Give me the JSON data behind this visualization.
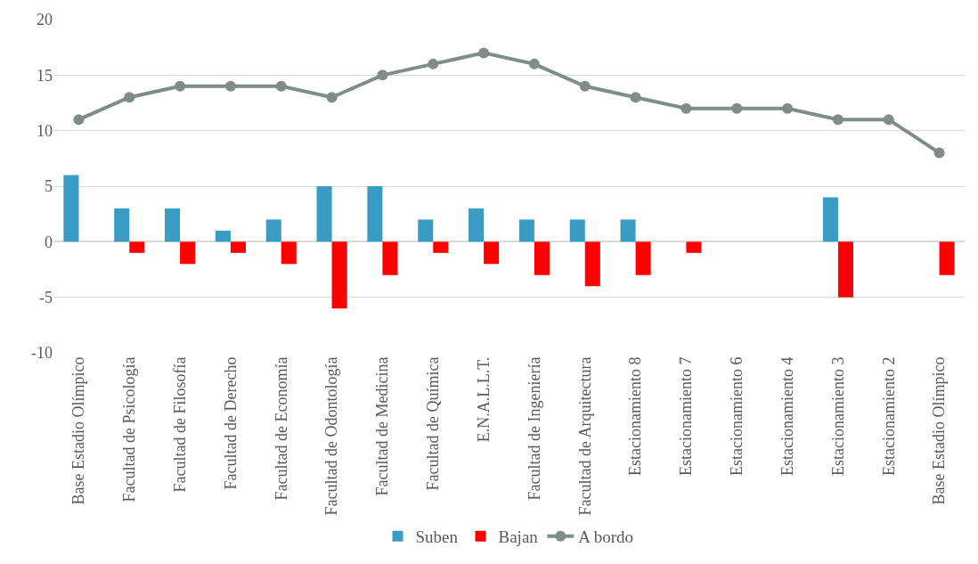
{
  "chart_data": {
    "type": "bar",
    "categories": [
      "Base Estadio Olímpico",
      "Facultad de Psicología",
      "Facultad de Filosofía",
      "Facultad de Derecho",
      "Facultad de Economía",
      "Facultad de Odontología",
      "Facultad de Medicina",
      "Facultad de Química",
      "E.N.A.L.L.T.",
      "Facultad de Ingeniería",
      "Facultad de Arquitectura",
      "Estacionamiento 8",
      "Estacionamiento 7",
      "Estacionamiento 6",
      "Estacionamiento 4",
      "Estacionamiento 3",
      "Estacionamiento 2",
      "Base Estadio Olímpico"
    ],
    "series": [
      {
        "name": "Suben",
        "color": "#3a9cc2",
        "values": [
          6,
          3,
          3,
          1,
          2,
          5,
          5,
          2,
          3,
          2,
          2,
          2,
          0,
          0,
          0,
          4,
          0,
          0
        ]
      },
      {
        "name": "Bajan",
        "color": "#ff0000",
        "values": [
          0,
          -1,
          -2,
          -1,
          -2,
          -6,
          -3,
          -1,
          -2,
          -3,
          -4,
          -3,
          -1,
          0,
          0,
          -5,
          0,
          -3
        ]
      },
      {
        "name": "A bordo",
        "type": "line",
        "color": "#7f8c8a",
        "marker": "circle",
        "line_style": "solid",
        "values": [
          11,
          13,
          14,
          14,
          14,
          13,
          15,
          16,
          17,
          16,
          14,
          13,
          12,
          12,
          12,
          11,
          11,
          8
        ]
      }
    ],
    "ylim": [
      -10,
      20
    ],
    "yticks": [
      -10,
      -5,
      0,
      5,
      10,
      15,
      20
    ],
    "grid": "y",
    "legend": "bottom"
  }
}
